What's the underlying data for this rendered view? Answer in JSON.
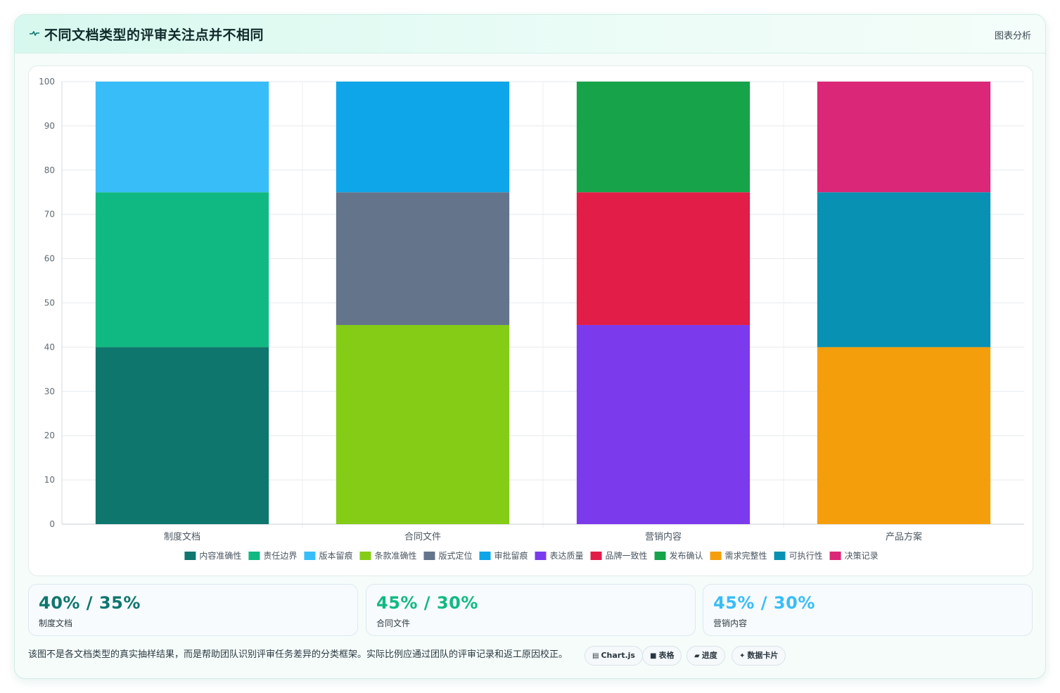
{
  "header": {
    "icon": "pulse-icon",
    "title": "不同文档类型的评审关注点并不相同",
    "link_label": "图表分析"
  },
  "chart_data": {
    "type": "bar",
    "stacked": true,
    "categories": [
      "制度文档",
      "合同文件",
      "营销内容",
      "产品方案"
    ],
    "ylim": [
      0,
      100
    ],
    "yticks": [
      0,
      10,
      20,
      30,
      40,
      50,
      60,
      70,
      80,
      90,
      100
    ],
    "grid": true,
    "legend_position": "bottom",
    "series": [
      {
        "name": "内容准确性",
        "color": "#0f766e",
        "values": [
          40,
          0,
          0,
          0
        ]
      },
      {
        "name": "责任边界",
        "color": "#10b981",
        "values": [
          35,
          0,
          0,
          0
        ]
      },
      {
        "name": "版本留痕",
        "color": "#38bdf8",
        "values": [
          25,
          0,
          0,
          0
        ]
      },
      {
        "name": "条款准确性",
        "color": "#84cc16",
        "values": [
          0,
          45,
          0,
          0
        ]
      },
      {
        "name": "版式定位",
        "color": "#64748b",
        "values": [
          0,
          30,
          0,
          0
        ]
      },
      {
        "name": "审批留痕",
        "color": "#0ea5e9",
        "values": [
          0,
          25,
          0,
          0
        ]
      },
      {
        "name": "表达质量",
        "color": "#7c3aed",
        "values": [
          0,
          0,
          45,
          0
        ]
      },
      {
        "name": "品牌一致性",
        "color": "#e11d48",
        "values": [
          0,
          0,
          30,
          0
        ]
      },
      {
        "name": "发布确认",
        "color": "#16a34a",
        "values": [
          0,
          0,
          25,
          0
        ]
      },
      {
        "name": "需求完整性",
        "color": "#f59e0b",
        "values": [
          0,
          0,
          0,
          40
        ]
      },
      {
        "name": "可执行性",
        "color": "#0891b2",
        "values": [
          0,
          0,
          0,
          35
        ]
      },
      {
        "name": "决策记录",
        "color": "#db2777",
        "values": [
          0,
          0,
          0,
          25
        ]
      }
    ]
  },
  "stats": [
    {
      "value": "40% / 35%",
      "label": "制度文档",
      "color": "#0f766e"
    },
    {
      "value": "45% / 30%",
      "label": "合同文件",
      "color": "#10b981"
    },
    {
      "value": "45% / 30%",
      "label": "营销内容",
      "color": "#38bdf8"
    }
  ],
  "footnote": "该图不是各文档类型的真实抽样结果，而是帮助团队识别评审任务差异的分类框架。实际比例应通过团队的评审记录和返工原因校正。",
  "chips": [
    {
      "icon": "chart-icon",
      "glyph": "▤",
      "label": "Chart.js"
    },
    {
      "icon": "table-icon",
      "glyph": "■",
      "label": "表格"
    },
    {
      "icon": "progress-icon",
      "glyph": "▰",
      "label": "进度"
    },
    {
      "icon": "sparkle-icon",
      "glyph": "✦",
      "label": "数据卡片"
    }
  ]
}
